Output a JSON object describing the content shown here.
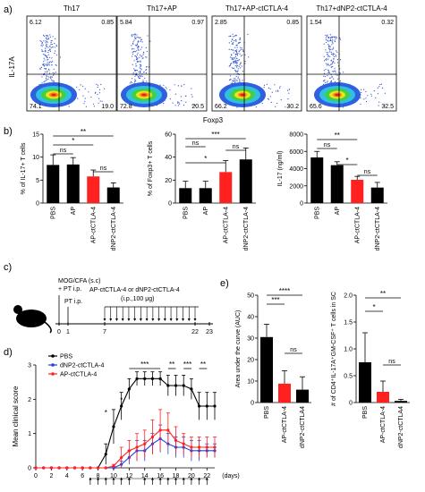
{
  "panel_a": {
    "label": "a)",
    "ylabel": "IL-17A",
    "xlabel": "Foxp3",
    "plots": [
      {
        "title": "Th17",
        "q_tl": "6.12",
        "q_tr": "0.85",
        "q_bl": "74.1",
        "q_br": "19.0"
      },
      {
        "title": "Th17+AP",
        "q_tl": "5.84",
        "q_tr": "0.97",
        "q_bl": "72.8",
        "q_br": "20.5"
      },
      {
        "title": "Th17+AP-ctCTLA-4",
        "q_tl": "2.85",
        "q_tr": "0.85",
        "q_bl": "66.2",
        "q_br": "30.2"
      },
      {
        "title": "Th17+dNP2-ctCTLA-4",
        "q_tl": "1.54",
        "q_tr": "0.32",
        "q_bl": "65.6",
        "q_br": "32.5"
      }
    ]
  },
  "panel_b": {
    "label": "b)"
  },
  "panel_c": {
    "label": "c)",
    "immunization": "MOG/CFA (s.c)",
    "pt1": "+ PT i.p.",
    "pt2": "PT i.p.",
    "treatment": "AP-ctCTLA-4 or dNP2-ctCTLA-4",
    "dose": "(i.p.,100 μg)",
    "ticks": [
      "0",
      "1",
      "7",
      "22",
      "23"
    ]
  },
  "panel_d": {
    "label": "d)"
  },
  "panel_e": {
    "label": "e)"
  },
  "colors": {
    "black_bar": "#000000",
    "red_bar": "#ff2020",
    "dnp2_line": "#2040e0",
    "ap_line": "#ff2020"
  },
  "chart_data": [
    {
      "type": "bar",
      "panel": "b1",
      "categories": [
        "PBS",
        "AP",
        "AP-ctCTLA-4",
        "dNP2-ctCTLA-4"
      ],
      "values": [
        8.3,
        8.4,
        5.8,
        3.4
      ],
      "errors": [
        2.2,
        1.5,
        1.4,
        1.0
      ],
      "colors": [
        "#000000",
        "#000000",
        "#ff2020",
        "#000000"
      ],
      "ylabel": "% of IL-17+ T cells",
      "ylim": [
        0,
        15
      ],
      "yticks": [
        "0",
        "5",
        "10",
        "15"
      ],
      "sig": [
        {
          "a": 0,
          "b": 3,
          "t": "**"
        },
        {
          "a": 0,
          "b": 2,
          "t": "*"
        },
        {
          "a": 0,
          "b": 1,
          "t": "ns"
        },
        {
          "a": 2,
          "b": 3,
          "t": "ns"
        }
      ]
    },
    {
      "type": "bar",
      "panel": "b2",
      "categories": [
        "PBS",
        "AP",
        "AP-ctCTLA-4",
        "dNP2-ctCTLA-4"
      ],
      "values": [
        13,
        13,
        27,
        38
      ],
      "errors": [
        6,
        6,
        10,
        10
      ],
      "colors": [
        "#000000",
        "#000000",
        "#ff2020",
        "#000000"
      ],
      "ylabel": "% of Foxp3+ T cells",
      "ylim": [
        0,
        60
      ],
      "yticks": [
        "0",
        "20",
        "40",
        "60"
      ],
      "sig": [
        {
          "a": 0,
          "b": 3,
          "t": "***"
        },
        {
          "a": 0,
          "b": 2,
          "t": "*"
        },
        {
          "a": 0,
          "b": 1,
          "t": "ns"
        },
        {
          "a": 2,
          "b": 3,
          "t": "ns"
        }
      ]
    },
    {
      "type": "bar",
      "panel": "b3",
      "categories": [
        "PBS",
        "AP",
        "AP-ctCTLA-4",
        "dNP2-ctCTLA-4"
      ],
      "values": [
        5300,
        4400,
        2700,
        1800
      ],
      "errors": [
        700,
        400,
        400,
        600
      ],
      "colors": [
        "#000000",
        "#000000",
        "#ff2020",
        "#000000"
      ],
      "ylabel": "IL-17 (ng/ml)",
      "ylim": [
        0,
        8000
      ],
      "yticks": [
        "0",
        "2000",
        "4000",
        "6000",
        "8000"
      ],
      "sig": [
        {
          "a": 0,
          "b": 2,
          "t": "**"
        },
        {
          "a": 1,
          "b": 2,
          "t": "*"
        },
        {
          "a": 0,
          "b": 1,
          "t": "ns"
        },
        {
          "a": 2,
          "b": 3,
          "t": "ns"
        }
      ]
    },
    {
      "type": "line",
      "panel": "d",
      "ylabel": "Mean clinical score",
      "xlabel": "(days)",
      "xlim": [
        0,
        23
      ],
      "ylim": [
        0,
        3
      ],
      "xticks": [
        "0",
        "2",
        "4",
        "6",
        "8",
        "10",
        "12",
        "14",
        "16",
        "18",
        "20",
        "22"
      ],
      "yticks": [
        "0",
        "1",
        "2",
        "3"
      ],
      "x": [
        0,
        1,
        2,
        3,
        4,
        5,
        6,
        7,
        8,
        9,
        10,
        11,
        12,
        13,
        14,
        15,
        16,
        17,
        18,
        19,
        20,
        21,
        22,
        23
      ],
      "series": [
        {
          "name": "PBS",
          "color": "#000000",
          "values": [
            0,
            0,
            0,
            0,
            0,
            0,
            0,
            0,
            0,
            0.4,
            1.2,
            1.8,
            2.3,
            2.6,
            2.6,
            2.6,
            2.6,
            2.4,
            2.4,
            2.4,
            2.3,
            1.8,
            1.8,
            1.8
          ],
          "errors": [
            0,
            0,
            0,
            0,
            0,
            0,
            0,
            0,
            0,
            0.3,
            0.5,
            0.4,
            0.3,
            0.2,
            0.2,
            0.2,
            0.2,
            0.3,
            0.3,
            0.3,
            0.3,
            0.4,
            0.4,
            0.4
          ]
        },
        {
          "name": "dNP2-ctCTLA-4",
          "color": "#2040e0",
          "values": [
            0,
            0,
            0,
            0,
            0,
            0,
            0,
            0,
            0,
            0,
            0,
            0.1,
            0.3,
            0.5,
            0.5,
            0.7,
            0.85,
            0.7,
            0.6,
            0.6,
            0.5,
            0.5,
            0.5,
            0.5
          ],
          "errors": [
            0,
            0,
            0,
            0,
            0,
            0,
            0,
            0,
            0,
            0,
            0,
            0.1,
            0.2,
            0.3,
            0.3,
            0.3,
            0.4,
            0.3,
            0.3,
            0.3,
            0.3,
            0.3,
            0.2,
            0.2
          ]
        },
        {
          "name": "AP-ctCTLA-4",
          "color": "#ff2020",
          "values": [
            0,
            0,
            0,
            0,
            0,
            0,
            0,
            0,
            0,
            0,
            0.05,
            0.3,
            0.5,
            0.6,
            0.7,
            0.9,
            1.1,
            1.1,
            0.8,
            0.7,
            0.6,
            0.6,
            0.6,
            0.6
          ],
          "errors": [
            0,
            0,
            0,
            0,
            0,
            0,
            0,
            0,
            0,
            0,
            0.05,
            0.3,
            0.3,
            0.4,
            0.4,
            0.5,
            0.6,
            0.5,
            0.4,
            0.3,
            0.3,
            0.3,
            0.3,
            0.3
          ]
        }
      ],
      "sig": [
        {
          "x": 9,
          "t": "*"
        },
        {
          "x": 11,
          "t": "*"
        },
        {
          "x1": 12,
          "x2": 16,
          "t": "***"
        },
        {
          "x1": 17,
          "x2": 18,
          "t": "**"
        },
        {
          "x1": 19,
          "x2": 20,
          "t": "***"
        },
        {
          "x1": 21,
          "x2": 22,
          "t": "**"
        }
      ],
      "arrow_days": [
        7,
        8,
        9,
        10,
        11,
        12,
        14,
        15,
        16,
        17,
        18,
        19,
        20,
        21,
        22
      ]
    },
    {
      "type": "bar",
      "panel": "e1",
      "categories": [
        "PBS",
        "AP-ctCTLA-4",
        "dNP2-ctCTLA4"
      ],
      "values": [
        30.5,
        8.8,
        6.0
      ],
      "errors": [
        6,
        6,
        6
      ],
      "colors": [
        "#000000",
        "#ff2020",
        "#000000"
      ],
      "ylabel": "Area under the curve (AUC)",
      "ylim": [
        0,
        50
      ],
      "yticks": [
        "0",
        "10",
        "20",
        "30",
        "40",
        "50"
      ],
      "sig": [
        {
          "a": 0,
          "b": 2,
          "t": "****"
        },
        {
          "a": 0,
          "b": 1,
          "t": "***"
        },
        {
          "a": 1,
          "b": 2,
          "t": "ns"
        }
      ]
    },
    {
      "type": "bar",
      "panel": "e2",
      "categories": [
        "PBS",
        "AP-ctCTLA-4",
        "dNP2-ctCTLA4"
      ],
      "values": [
        0.75,
        0.2,
        0.03
      ],
      "errors": [
        0.55,
        0.2,
        0.03
      ],
      "colors": [
        "#000000",
        "#ff2020",
        "#000000"
      ],
      "ylabel": "# of CD4⁺IL-17A⁺GM-CSF⁺ T cells in SC",
      "ylim": [
        0,
        2.0
      ],
      "yticks": [
        "0",
        "0.5",
        "1.0",
        "1.5",
        "2.0"
      ],
      "sig": [
        {
          "a": 0,
          "b": 2,
          "t": "**"
        },
        {
          "a": 0,
          "b": 1,
          "t": "*"
        },
        {
          "a": 1,
          "b": 2,
          "t": "ns"
        }
      ]
    }
  ]
}
